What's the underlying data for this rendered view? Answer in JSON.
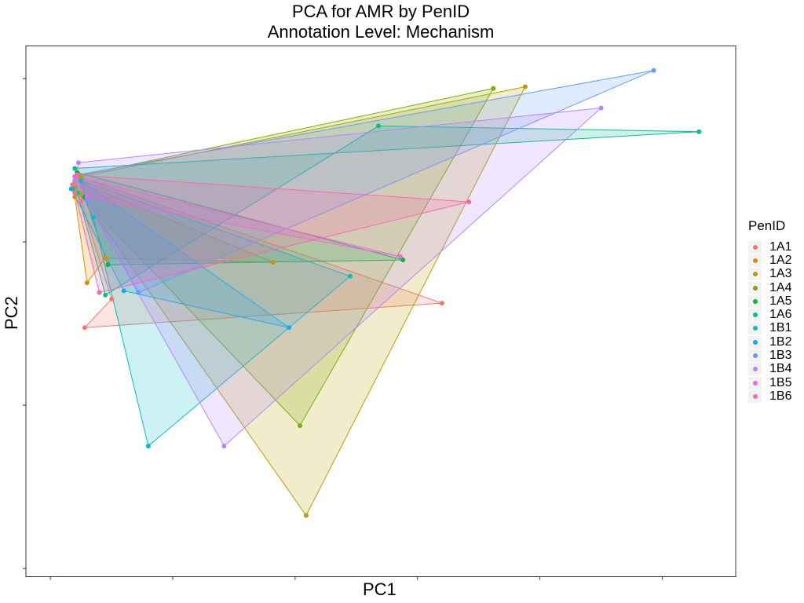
{
  "chart": {
    "title": "PCA for AMR by PenID",
    "subtitle": "Annotation Level: Mechanism",
    "xlabel": "PC1",
    "ylabel": "PC2",
    "legend_title": "PenID"
  },
  "chart_data": {
    "type": "scatter",
    "title": "PCA for AMR by PenID",
    "subtitle": "Annotation Level: Mechanism",
    "xlabel": "PC1",
    "ylabel": "PC2",
    "xlim": [
      -0.2,
      5.6
    ],
    "ylim": [
      -3.1,
      3.4
    ],
    "grid": false,
    "legend_position": "right",
    "hulls": true,
    "series": [
      {
        "name": "1A1",
        "color": "#F8766D",
        "points": [
          [
            0.23,
            1.8
          ],
          [
            3.2,
            0.25
          ],
          [
            0.28,
            -0.05
          ],
          [
            0.5,
            0.3
          ],
          [
            0.25,
            1.5
          ],
          [
            0.18,
            1.7
          ]
        ]
      },
      {
        "name": "1A2",
        "color": "#DE8C00",
        "points": [
          [
            0.2,
            1.75
          ],
          [
            1.82,
            0.75
          ],
          [
            0.45,
            0.8
          ],
          [
            0.3,
            0.5
          ],
          [
            0.2,
            1.55
          ]
        ]
      },
      {
        "name": "1A3",
        "color": "#B79F00",
        "points": [
          [
            0.25,
            1.8
          ],
          [
            3.88,
            2.9
          ],
          [
            2.09,
            -2.35
          ],
          [
            0.24,
            1.6
          ]
        ]
      },
      {
        "name": "1A4",
        "color": "#7CAE00",
        "points": [
          [
            0.2,
            1.8
          ],
          [
            3.62,
            2.88
          ],
          [
            2.04,
            -1.25
          ],
          [
            0.19,
            1.65
          ]
        ]
      },
      {
        "name": "1A5",
        "color": "#00BA38",
        "points": [
          [
            0.22,
            1.85
          ],
          [
            2.88,
            0.78
          ],
          [
            0.47,
            0.72
          ],
          [
            0.28,
            1.55
          ]
        ]
      },
      {
        "name": "1A6",
        "color": "#00C08B",
        "points": [
          [
            0.2,
            1.9
          ],
          [
            5.3,
            2.35
          ],
          [
            2.68,
            2.42
          ],
          [
            0.45,
            0.35
          ],
          [
            0.22,
            1.6
          ]
        ]
      },
      {
        "name": "1B1",
        "color": "#00BFC4",
        "points": [
          [
            0.25,
            1.75
          ],
          [
            2.45,
            0.58
          ],
          [
            0.8,
            -1.5
          ],
          [
            0.35,
            1.3
          ]
        ]
      },
      {
        "name": "1B2",
        "color": "#00B4F0",
        "points": [
          [
            0.2,
            1.8
          ],
          [
            1.95,
            -0.05
          ],
          [
            0.6,
            0.4
          ],
          [
            0.17,
            1.65
          ]
        ]
      },
      {
        "name": "1B3",
        "color": "#619CFF",
        "points": [
          [
            0.22,
            1.82
          ],
          [
            4.93,
            3.1
          ],
          [
            0.72,
            0.38
          ],
          [
            0.3,
            1.5
          ]
        ]
      },
      {
        "name": "1B4",
        "color": "#B983FF",
        "points": [
          [
            0.23,
            1.97
          ],
          [
            4.5,
            2.64
          ],
          [
            1.42,
            -1.5
          ],
          [
            0.2,
            1.75
          ]
        ]
      },
      {
        "name": "1B5",
        "color": "#F564E3",
        "points": [
          [
            0.2,
            1.8
          ],
          [
            2.86,
            0.82
          ],
          [
            0.3,
            1.55
          ]
        ]
      },
      {
        "name": "1B6",
        "color": "#FF64B0",
        "points": [
          [
            0.22,
            1.82
          ],
          [
            3.42,
            1.49
          ],
          [
            0.4,
            0.38
          ],
          [
            0.2,
            1.6
          ]
        ]
      }
    ]
  }
}
